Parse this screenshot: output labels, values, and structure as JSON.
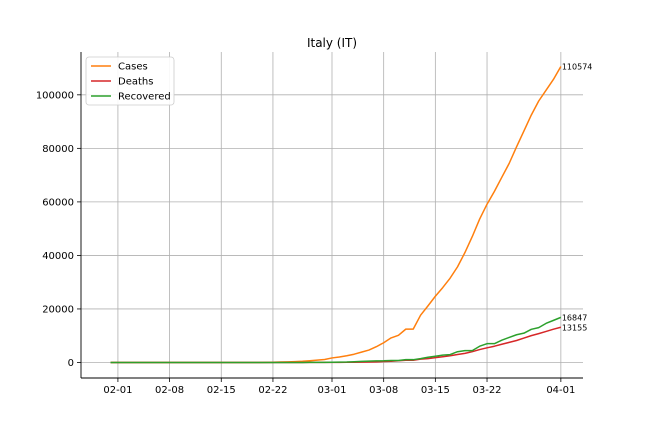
{
  "chart_data": {
    "type": "line",
    "title": "Italy (IT)",
    "xlabel": "",
    "ylabel": "",
    "grid": true,
    "legend_position": "top-left",
    "x_ticks": [
      "02-01",
      "02-08",
      "02-15",
      "02-22",
      "03-01",
      "03-08",
      "03-15",
      "03-22",
      "04-01"
    ],
    "y_ticks": [
      "0",
      "20000",
      "40000",
      "60000",
      "80000",
      "100000"
    ],
    "ylim": [
      -5800,
      116000
    ],
    "xlim": [
      "2020-01-27",
      "2020-04-04"
    ],
    "series": [
      {
        "name": "Cases",
        "color": "#ff7f0e",
        "end_label": "110574",
        "points": [
          [
            "2020-01-31",
            2
          ],
          [
            "2020-02-06",
            3
          ],
          [
            "2020-02-20",
            3
          ],
          [
            "2020-02-21",
            20
          ],
          [
            "2020-02-22",
            79
          ],
          [
            "2020-02-23",
            157
          ],
          [
            "2020-02-24",
            229
          ],
          [
            "2020-02-25",
            322
          ],
          [
            "2020-02-26",
            453
          ],
          [
            "2020-02-27",
            655
          ],
          [
            "2020-02-28",
            888
          ],
          [
            "2020-02-29",
            1128
          ],
          [
            "2020-03-01",
            1694
          ],
          [
            "2020-03-02",
            2036
          ],
          [
            "2020-03-03",
            2502
          ],
          [
            "2020-03-04",
            3089
          ],
          [
            "2020-03-05",
            3858
          ],
          [
            "2020-03-06",
            4636
          ],
          [
            "2020-03-07",
            5883
          ],
          [
            "2020-03-08",
            7375
          ],
          [
            "2020-03-09",
            9172
          ],
          [
            "2020-03-10",
            10149
          ],
          [
            "2020-03-11",
            12462
          ],
          [
            "2020-03-12",
            12462
          ],
          [
            "2020-03-13",
            17660
          ],
          [
            "2020-03-14",
            21157
          ],
          [
            "2020-03-15",
            24747
          ],
          [
            "2020-03-16",
            27980
          ],
          [
            "2020-03-17",
            31506
          ],
          [
            "2020-03-18",
            35713
          ],
          [
            "2020-03-19",
            41035
          ],
          [
            "2020-03-20",
            47021
          ],
          [
            "2020-03-21",
            53578
          ],
          [
            "2020-03-22",
            59138
          ],
          [
            "2020-03-23",
            63927
          ],
          [
            "2020-03-24",
            69176
          ],
          [
            "2020-03-25",
            74386
          ],
          [
            "2020-03-26",
            80589
          ],
          [
            "2020-03-27",
            86498
          ],
          [
            "2020-03-28",
            92472
          ],
          [
            "2020-03-29",
            97689
          ],
          [
            "2020-03-30",
            101739
          ],
          [
            "2020-03-31",
            105792
          ],
          [
            "2020-04-01",
            110574
          ]
        ]
      },
      {
        "name": "Deaths",
        "color": "#d62728",
        "end_label": "13155",
        "points": [
          [
            "2020-01-31",
            0
          ],
          [
            "2020-02-21",
            1
          ],
          [
            "2020-02-22",
            2
          ],
          [
            "2020-02-23",
            3
          ],
          [
            "2020-02-24",
            7
          ],
          [
            "2020-02-25",
            10
          ],
          [
            "2020-02-26",
            12
          ],
          [
            "2020-02-27",
            17
          ],
          [
            "2020-02-28",
            21
          ],
          [
            "2020-02-29",
            29
          ],
          [
            "2020-03-01",
            34
          ],
          [
            "2020-03-02",
            52
          ],
          [
            "2020-03-03",
            79
          ],
          [
            "2020-03-04",
            107
          ],
          [
            "2020-03-05",
            148
          ],
          [
            "2020-03-06",
            197
          ],
          [
            "2020-03-07",
            233
          ],
          [
            "2020-03-08",
            366
          ],
          [
            "2020-03-09",
            463
          ],
          [
            "2020-03-10",
            631
          ],
          [
            "2020-03-11",
            827
          ],
          [
            "2020-03-12",
            827
          ],
          [
            "2020-03-13",
            1266
          ],
          [
            "2020-03-14",
            1441
          ],
          [
            "2020-03-15",
            1809
          ],
          [
            "2020-03-16",
            2158
          ],
          [
            "2020-03-17",
            2503
          ],
          [
            "2020-03-18",
            2978
          ],
          [
            "2020-03-19",
            3405
          ],
          [
            "2020-03-20",
            4032
          ],
          [
            "2020-03-21",
            4825
          ],
          [
            "2020-03-22",
            5476
          ],
          [
            "2020-03-23",
            6077
          ],
          [
            "2020-03-24",
            6820
          ],
          [
            "2020-03-25",
            7503
          ],
          [
            "2020-03-26",
            8215
          ],
          [
            "2020-03-27",
            9134
          ],
          [
            "2020-03-28",
            10023
          ],
          [
            "2020-03-29",
            10779
          ],
          [
            "2020-03-30",
            11591
          ],
          [
            "2020-03-31",
            12428
          ],
          [
            "2020-04-01",
            13155
          ]
        ]
      },
      {
        "name": "Recovered",
        "color": "#2ca02c",
        "end_label": "16847",
        "points": [
          [
            "2020-01-31",
            0
          ],
          [
            "2020-02-21",
            0
          ],
          [
            "2020-02-22",
            1
          ],
          [
            "2020-02-24",
            1
          ],
          [
            "2020-02-25",
            1
          ],
          [
            "2020-02-26",
            3
          ],
          [
            "2020-02-27",
            45
          ],
          [
            "2020-02-28",
            46
          ],
          [
            "2020-02-29",
            46
          ],
          [
            "2020-03-01",
            83
          ],
          [
            "2020-03-02",
            149
          ],
          [
            "2020-03-03",
            160
          ],
          [
            "2020-03-04",
            276
          ],
          [
            "2020-03-05",
            414
          ],
          [
            "2020-03-06",
            523
          ],
          [
            "2020-03-07",
            589
          ],
          [
            "2020-03-08",
            622
          ],
          [
            "2020-03-09",
            724
          ],
          [
            "2020-03-10",
            724
          ],
          [
            "2020-03-11",
            1045
          ],
          [
            "2020-03-12",
            1045
          ],
          [
            "2020-03-13",
            1439
          ],
          [
            "2020-03-14",
            1966
          ],
          [
            "2020-03-15",
            2335
          ],
          [
            "2020-03-16",
            2749
          ],
          [
            "2020-03-17",
            2941
          ],
          [
            "2020-03-18",
            4025
          ],
          [
            "2020-03-19",
            4440
          ],
          [
            "2020-03-20",
            4440
          ],
          [
            "2020-03-21",
            6072
          ],
          [
            "2020-03-22",
            7024
          ],
          [
            "2020-03-23",
            7024
          ],
          [
            "2020-03-24",
            8326
          ],
          [
            "2020-03-25",
            9362
          ],
          [
            "2020-03-26",
            10361
          ],
          [
            "2020-03-27",
            10950
          ],
          [
            "2020-03-28",
            12384
          ],
          [
            "2020-03-29",
            13030
          ],
          [
            "2020-03-30",
            14620
          ],
          [
            "2020-03-31",
            15729
          ],
          [
            "2020-04-01",
            16847
          ]
        ]
      }
    ]
  }
}
